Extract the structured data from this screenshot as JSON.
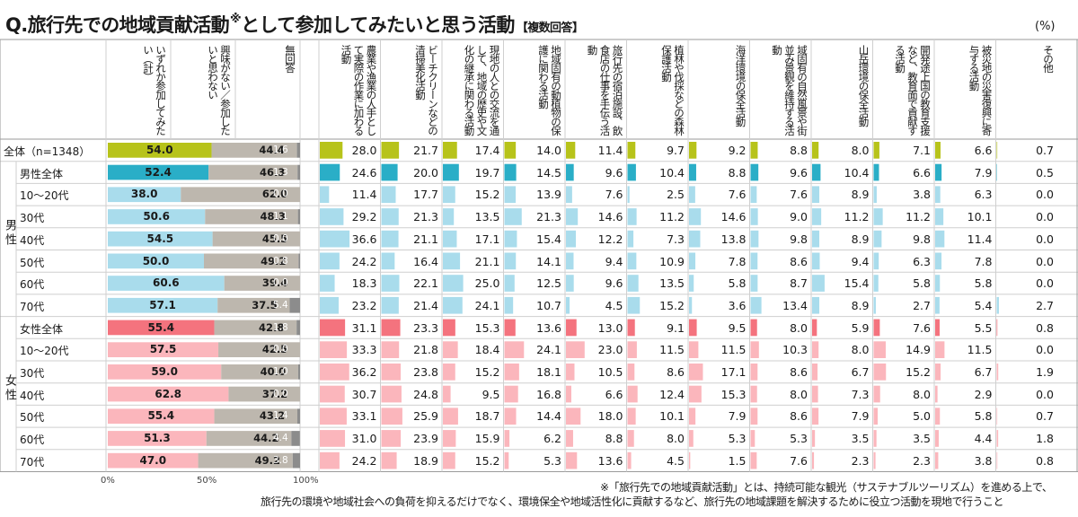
{
  "title": "Q.旅行先での地域貢献活動",
  "title_mark": "※",
  "title_rest": "として参加してみたいと思う活動",
  "title_note": "【複数回答】",
  "unit": "(%)",
  "colors": {
    "total": "#b7c31a",
    "male_total": "#2aaec7",
    "male": "#a9dcec",
    "female_total": "#f4737e",
    "female": "#fbb6bc",
    "no_interest": "#bdb7ae",
    "no_answer": "#8c8c8c",
    "grid": "#cfcfcf"
  },
  "chart_data": {
    "type": "table",
    "groups": [
      "男性",
      "女性"
    ],
    "rows": [
      "全体（n=1348）",
      "男性全体",
      "10～20代",
      "30代",
      "40代",
      "50代",
      "60代",
      "70代",
      "女性全体",
      "10～20代",
      "30代",
      "40代",
      "50代",
      "60代",
      "70代"
    ],
    "row_kind": [
      "total",
      "male_total",
      "male",
      "male",
      "male",
      "male",
      "male",
      "male",
      "female_total",
      "female",
      "female",
      "female",
      "female",
      "female",
      "female"
    ],
    "stacked": {
      "axis_ticks": [
        "0%",
        "50%",
        "100%"
      ],
      "columns": [
        "いずれか参加してみたい（計）",
        "興味がない／参加したいと思わない",
        "無回答"
      ],
      "values": [
        [
          54.0,
          44.4,
          1.6
        ],
        [
          52.4,
          46.3,
          1.3
        ],
        [
          38.0,
          62.0,
          0.0
        ],
        [
          50.6,
          48.3,
          1.1
        ],
        [
          54.5,
          45.5,
          0.0
        ],
        [
          50.0,
          49.2,
          0.8
        ],
        [
          60.6,
          39.4,
          0.0
        ],
        [
          57.1,
          37.5,
          5.4
        ],
        [
          55.4,
          42.8,
          1.8
        ],
        [
          57.5,
          42.5,
          0.0
        ],
        [
          59.0,
          40.0,
          1.0
        ],
        [
          62.8,
          37.2,
          0.0
        ],
        [
          55.4,
          43.2,
          1.4
        ],
        [
          51.3,
          44.2,
          4.4
        ],
        [
          47.0,
          49.2,
          3.8
        ]
      ]
    },
    "activities": {
      "columns": [
        "農業や漁業の人手として実際の作業に加わる活動",
        "ビーチクリーンなどの清掃美化活動",
        "現地の人との交流を通して、地域の歴史や文化の継承に関わる活動",
        "地域固有の動植物の保護に関わる活動",
        "旅行先の宿泊施設、飲食店の仕事を手伝う活動",
        "植林や伐採などの森林保護活動",
        "海洋環境の保全活動",
        "域固有の自然風景や街並み景観を維持する活動",
        "山岳環境の保全活動",
        "開発途上国の教育支援など、教育面で貢献する活動",
        "被災地の災害復興に寄与する活動",
        "その他"
      ],
      "values": [
        [
          28.0,
          21.7,
          17.4,
          14.0,
          11.4,
          9.7,
          9.2,
          8.8,
          8.0,
          7.1,
          6.6,
          0.7
        ],
        [
          24.6,
          20.0,
          19.7,
          14.5,
          9.6,
          10.4,
          8.8,
          9.6,
          10.4,
          6.6,
          7.9,
          0.5
        ],
        [
          11.4,
          17.7,
          15.2,
          13.9,
          7.6,
          2.5,
          7.6,
          7.6,
          8.9,
          3.8,
          6.3,
          0.0
        ],
        [
          29.2,
          21.3,
          13.5,
          21.3,
          14.6,
          11.2,
          14.6,
          9.0,
          11.2,
          11.2,
          10.1,
          0.0
        ],
        [
          36.6,
          21.1,
          17.1,
          15.4,
          12.2,
          7.3,
          13.8,
          9.8,
          8.9,
          9.8,
          11.4,
          0.0
        ],
        [
          24.2,
          16.4,
          21.1,
          14.1,
          9.4,
          10.9,
          7.8,
          8.6,
          9.4,
          6.3,
          7.8,
          0.0
        ],
        [
          18.3,
          22.1,
          25.0,
          12.5,
          9.6,
          13.5,
          5.8,
          8.7,
          15.4,
          5.8,
          5.8,
          0.0
        ],
        [
          23.2,
          21.4,
          24.1,
          10.7,
          4.5,
          15.2,
          3.6,
          13.4,
          8.9,
          2.7,
          5.4,
          2.7
        ],
        [
          31.1,
          23.3,
          15.3,
          13.6,
          13.0,
          9.1,
          9.5,
          8.0,
          5.9,
          7.6,
          5.5,
          0.8
        ],
        [
          33.3,
          21.8,
          18.4,
          24.1,
          23.0,
          11.5,
          11.5,
          10.3,
          8.0,
          14.9,
          11.5,
          0.0
        ],
        [
          36.2,
          23.8,
          15.2,
          18.1,
          10.5,
          8.6,
          17.1,
          8.6,
          6.7,
          15.2,
          6.7,
          1.9
        ],
        [
          30.7,
          24.8,
          9.5,
          16.8,
          6.6,
          12.4,
          15.3,
          8.0,
          7.3,
          8.0,
          2.9,
          0.0
        ],
        [
          33.1,
          25.9,
          18.7,
          14.4,
          18.0,
          10.1,
          7.9,
          8.6,
          7.9,
          5.0,
          5.8,
          0.7
        ],
        [
          31.0,
          23.9,
          15.9,
          6.2,
          8.8,
          8.0,
          5.3,
          5.3,
          3.5,
          3.5,
          4.4,
          1.8
        ],
        [
          24.2,
          18.9,
          15.2,
          5.3,
          13.6,
          4.5,
          1.5,
          7.6,
          2.3,
          2.3,
          3.8,
          0.8
        ]
      ]
    }
  },
  "footnote_line1": "※「旅行先での地域貢献活動」とは、持続可能な観光（サステナブルツーリズム）を進める上で、",
  "footnote_line2": "旅行先の環境や地域社会への負荷を抑えるだけでなく、環境保全や地域活性化に貢献するなど、旅行先の地域課題を解決するために役立つ活動を現地で行うこと"
}
